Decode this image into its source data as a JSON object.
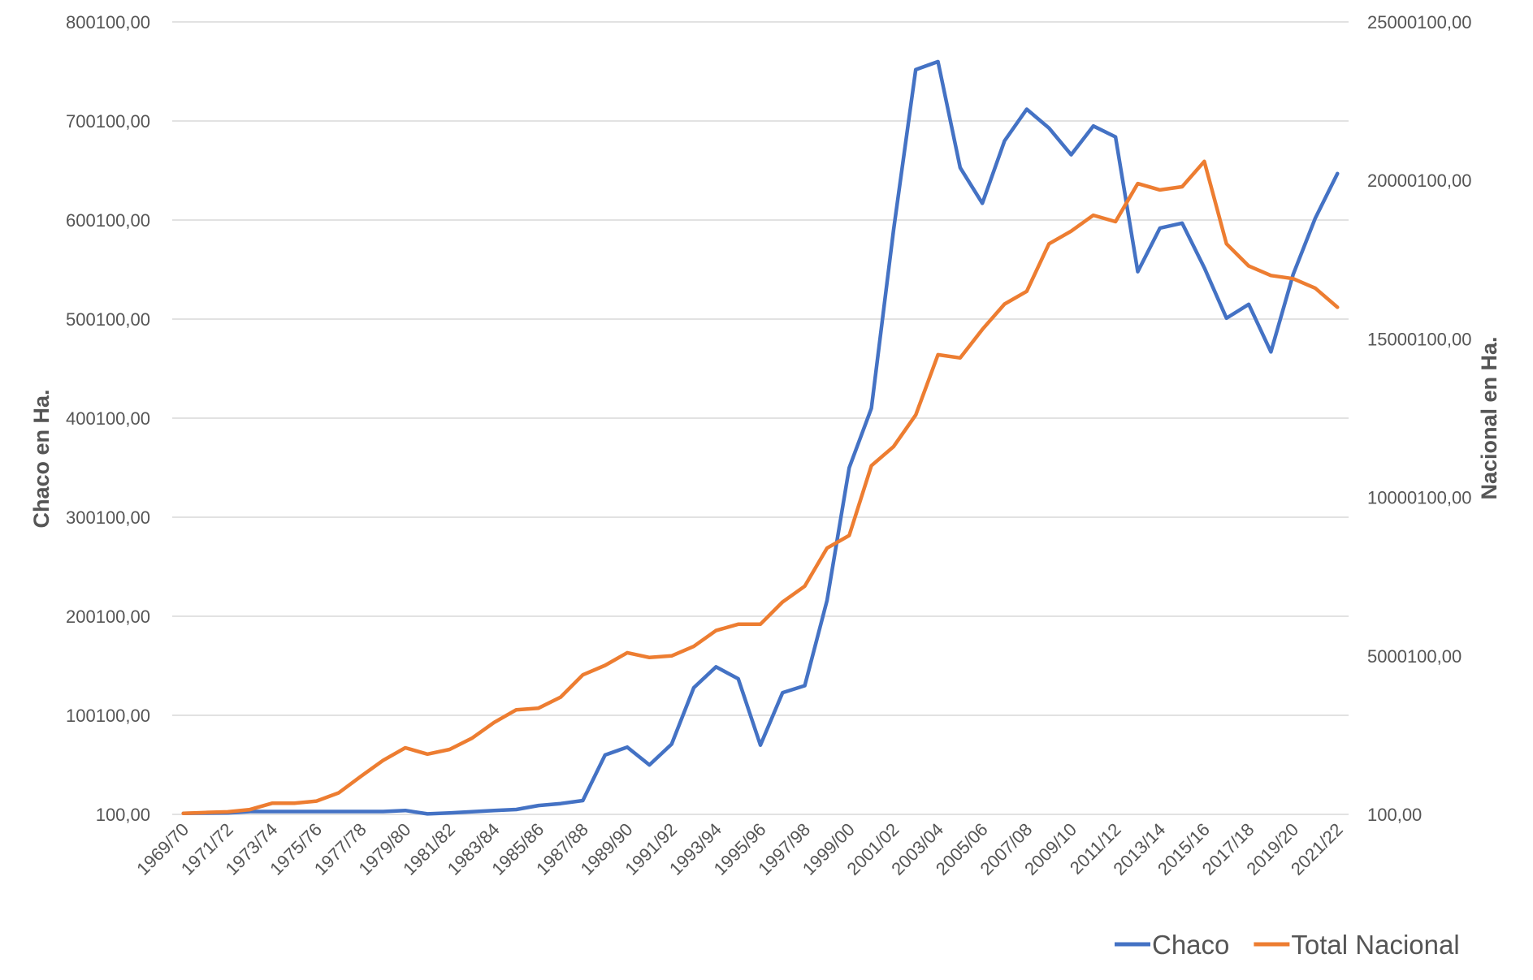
{
  "chart_data": {
    "type": "line",
    "xlabel": "",
    "ylabel": "Chaco en Ha.",
    "y2label": "Nacional en Ha.",
    "ylim": [
      100,
      800100
    ],
    "y2lim": [
      100,
      25000100
    ],
    "yticks": [
      "100,00",
      "100100,00",
      "200100,00",
      "300100,00",
      "400100,00",
      "500100,00",
      "600100,00",
      "700100,00",
      "800100,00"
    ],
    "y2ticks": [
      "100,00",
      "5000100,00",
      "10000100,00",
      "15000100,00",
      "20000100,00",
      "25000100,00"
    ],
    "grid": true,
    "legend_position": "bottom-right",
    "x": [
      "1969/70",
      "1970/71",
      "1971/72",
      "1972/73",
      "1973/74",
      "1974/75",
      "1975/76",
      "1976/77",
      "1977/78",
      "1978/79",
      "1979/80",
      "1980/81",
      "1981/82",
      "1982/83",
      "1983/84",
      "1984/85",
      "1985/86",
      "1986/87",
      "1987/88",
      "1988/89",
      "1989/90",
      "1990/91",
      "1991/92",
      "1992/93",
      "1993/94",
      "1994/95",
      "1995/96",
      "1996/97",
      "1997/98",
      "1998/99",
      "1999/00",
      "2000/01",
      "2001/02",
      "2002/03",
      "2003/04",
      "2004/05",
      "2005/06",
      "2006/07",
      "2007/08",
      "2008/09",
      "2009/10",
      "2010/11",
      "2011/12",
      "2012/13",
      "2013/14",
      "2014/15",
      "2015/16",
      "2016/17",
      "2017/18",
      "2018/19",
      "2019/20",
      "2020/21",
      "2021/22"
    ],
    "x_tick_labels": [
      "1969/70",
      "1971/72",
      "1973/74",
      "1975/76",
      "1977/78",
      "1979/80",
      "1981/82",
      "1983/84",
      "1985/86",
      "1987/88",
      "1989/90",
      "1991/92",
      "1993/94",
      "1995/96",
      "1997/98",
      "1999/00",
      "2001/02",
      "2003/04",
      "2005/06",
      "2007/08",
      "2009/10",
      "2011/12",
      "2013/14",
      "2015/16",
      "2017/18",
      "2019/20",
      "2021/22"
    ],
    "series": [
      {
        "name": "Chaco",
        "axis": "left",
        "color": "#4472C4",
        "values": [
          1200,
          1300,
          1500,
          3000,
          3000,
          3000,
          3000,
          3000,
          3000,
          3000,
          4000,
          600,
          1500,
          2800,
          4000,
          5000,
          9000,
          11000,
          14000,
          60000,
          68000,
          50000,
          71000,
          128000,
          149000,
          137000,
          70000,
          123000,
          130000,
          216000,
          350000,
          410000,
          590000,
          752000,
          760000,
          653000,
          617000,
          680000,
          712000,
          693000,
          666000,
          695000,
          684000,
          548000,
          592000,
          597000,
          552000,
          501000,
          515000,
          467000,
          545000,
          602000,
          647000
        ]
      },
      {
        "name": "Total Nacional",
        "axis": "right",
        "color": "#ED7D31",
        "values": [
          30000,
          60000,
          80000,
          150000,
          350000,
          350000,
          420000,
          680000,
          1200000,
          1700000,
          2100000,
          1900000,
          2050000,
          2400000,
          2900000,
          3300000,
          3350000,
          3700000,
          4400000,
          4700000,
          5100000,
          4950000,
          5000000,
          5300000,
          5800000,
          6000000,
          6000000,
          6700000,
          7200000,
          8400000,
          8800000,
          11000000,
          11600000,
          12600000,
          14500000,
          14400000,
          15300000,
          16100000,
          16500000,
          18000000,
          18400000,
          18900000,
          18700000,
          19900000,
          19700000,
          19800000,
          20600000,
          18000000,
          17300000,
          17000000,
          16900000,
          16600000,
          16000000
        ]
      }
    ]
  }
}
